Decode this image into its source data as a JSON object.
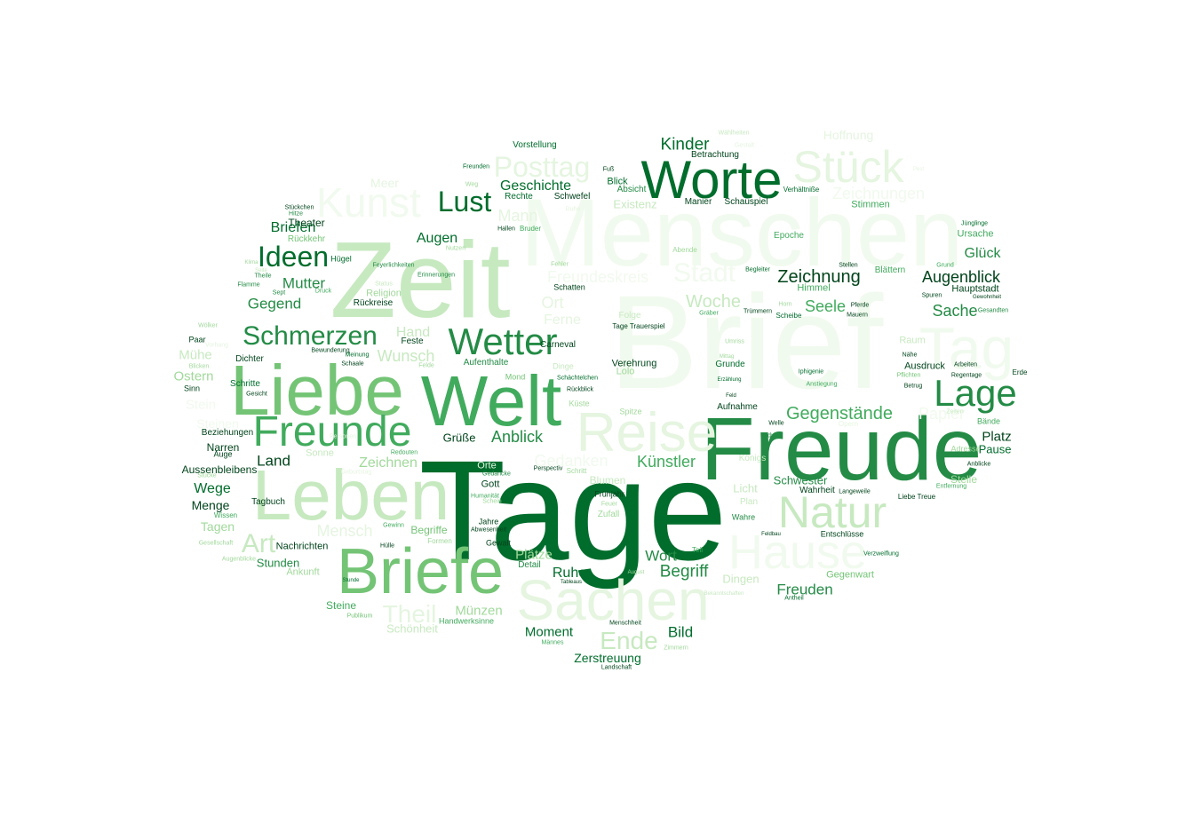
{
  "palette": {
    "g1": "#00441b",
    "g2": "#006d2c",
    "g3": "#238b45",
    "g4": "#41ab5d",
    "g5": "#74c476",
    "g6": "#a1d99b",
    "g7": "#c7e9c0",
    "g8": "#e5f5e0",
    "g9": "#f1faee"
  },
  "words": [
    {
      "t": "Brief",
      "c": "g9"
    },
    {
      "t": "Menschen",
      "c": "g9"
    },
    {
      "t": "Tage",
      "c": "g2"
    },
    {
      "t": "Zeit",
      "c": "g7"
    },
    {
      "t": "Freude",
      "c": "g3"
    },
    {
      "t": "Welt",
      "c": "g4"
    },
    {
      "t": "Liebe",
      "c": "g5"
    },
    {
      "t": "Leben",
      "c": "g7"
    },
    {
      "t": "Briefe",
      "c": "g5"
    },
    {
      "t": "Sachen",
      "c": "g8"
    },
    {
      "t": "Reise",
      "c": "g8"
    },
    {
      "t": "Worte",
      "c": "g2"
    },
    {
      "t": "Stück",
      "c": "g8"
    },
    {
      "t": "Hause",
      "c": "g9"
    },
    {
      "t": "Natur",
      "c": "g7"
    },
    {
      "t": "Tag",
      "c": "g9"
    },
    {
      "t": "Freunde",
      "c": "g4"
    },
    {
      "t": "Lage",
      "c": "g3"
    },
    {
      "t": "Kunst",
      "c": "g9"
    },
    {
      "t": "Wetter",
      "c": "g3"
    },
    {
      "t": "Schmerzen",
      "c": "g3"
    },
    {
      "t": "Ideen",
      "c": "g2"
    },
    {
      "t": "Posttag",
      "c": "g8"
    },
    {
      "t": "Lust",
      "c": "g2"
    },
    {
      "t": "Art",
      "c": "g7"
    },
    {
      "t": "Theil",
      "c": "g8"
    },
    {
      "t": "Ende",
      "c": "g7"
    },
    {
      "t": "Stadt",
      "c": "g9"
    },
    {
      "t": "Zeichnung",
      "c": "g1"
    },
    {
      "t": "Augenblick",
      "c": "g1"
    },
    {
      "t": "Gegenstände",
      "c": "g4"
    },
    {
      "t": "Woche",
      "c": "g7"
    },
    {
      "t": "Kinder",
      "c": "g2"
    },
    {
      "t": "Hoffnung",
      "c": "g8"
    },
    {
      "t": "Zeichnungen",
      "c": "g9"
    },
    {
      "t": "Geschichte",
      "c": "g2"
    },
    {
      "t": "Freundeskreis",
      "c": "g9"
    },
    {
      "t": "Mann",
      "c": "g8"
    },
    {
      "t": "Gedanken",
      "c": "g9"
    },
    {
      "t": "Augen",
      "c": "g2"
    },
    {
      "t": "Mutter",
      "c": "g3"
    },
    {
      "t": "Gegend",
      "c": "g3"
    },
    {
      "t": "Briefen",
      "c": "g2"
    },
    {
      "t": "Meer",
      "c": "g8"
    },
    {
      "t": "Wunsch",
      "c": "g7"
    },
    {
      "t": "Hand",
      "c": "g7"
    },
    {
      "t": "Ort",
      "c": "g8"
    },
    {
      "t": "Ferne",
      "c": "g8"
    },
    {
      "t": "Anblick",
      "c": "g3"
    },
    {
      "t": "Künstler",
      "c": "g4"
    },
    {
      "t": "Zeichnen",
      "c": "g6"
    },
    {
      "t": "Mensch",
      "c": "g8"
    },
    {
      "t": "Münzen",
      "c": "g6"
    },
    {
      "t": "Moment",
      "c": "g2"
    },
    {
      "t": "Bild",
      "c": "g2"
    },
    {
      "t": "Freuden",
      "c": "g3"
    },
    {
      "t": "Wort",
      "c": "g3"
    },
    {
      "t": "Begriff",
      "c": "g3"
    },
    {
      "t": "Ruhe",
      "c": "g2"
    },
    {
      "t": "Plätze",
      "c": "g6"
    },
    {
      "t": "Zerstreuung",
      "c": "g2"
    },
    {
      "t": "Schönheit",
      "c": "g7"
    },
    {
      "t": "Seele",
      "c": "g4"
    },
    {
      "t": "Sache",
      "c": "g3"
    },
    {
      "t": "Glück",
      "c": "g3"
    },
    {
      "t": "Platz",
      "c": "g1"
    },
    {
      "t": "Pause",
      "c": "g2"
    },
    {
      "t": "Papier",
      "c": "g9"
    },
    {
      "t": "Stelle",
      "c": "g6"
    },
    {
      "t": "Schwester",
      "c": "g3"
    },
    {
      "t": "Licht",
      "c": "g7"
    },
    {
      "t": "Dingen",
      "c": "g7"
    },
    {
      "t": "Gegenwart",
      "c": "g5"
    },
    {
      "t": "Existenz",
      "c": "g7"
    },
    {
      "t": "Stimmen",
      "c": "g4"
    },
    {
      "t": "Ursache",
      "c": "g4"
    },
    {
      "t": "Hauptstadt",
      "c": "g1"
    },
    {
      "t": "Raum",
      "c": "g7"
    },
    {
      "t": "Ausdruck",
      "c": "g1"
    },
    {
      "t": "Himmel",
      "c": "g4"
    },
    {
      "t": "Folge",
      "c": "g7"
    },
    {
      "t": "Land",
      "c": "g1"
    },
    {
      "t": "Wege",
      "c": "g2"
    },
    {
      "t": "Menge",
      "c": "g1"
    },
    {
      "t": "Tagen",
      "c": "g6"
    },
    {
      "t": "Stunden",
      "c": "g3"
    },
    {
      "t": "Steine",
      "c": "g4"
    },
    {
      "t": "Ostern",
      "c": "g6"
    },
    {
      "t": "Mühe",
      "c": "g7"
    },
    {
      "t": "Stein",
      "c": "g9"
    },
    {
      "t": "Steinen",
      "c": "g9"
    },
    {
      "t": "Grüße",
      "c": "g1"
    },
    {
      "t": "Sonne",
      "c": "g7"
    },
    {
      "t": "Orte",
      "c": "g8"
    },
    {
      "t": "Gott",
      "c": "g1"
    },
    {
      "t": "Begriffe",
      "c": "g5"
    },
    {
      "t": "Religion",
      "c": "g6"
    },
    {
      "t": "Rückreise",
      "c": "g1"
    },
    {
      "t": "Feste",
      "c": "g1"
    },
    {
      "t": "Aufenthalte",
      "c": "g3"
    },
    {
      "t": "Verehrung",
      "c": "g1"
    },
    {
      "t": "Grunde",
      "c": "g2"
    },
    {
      "t": "Aufnahme",
      "c": "g1"
    },
    {
      "t": "Königs",
      "c": "g7"
    },
    {
      "t": "Plan",
      "c": "g7"
    },
    {
      "t": "Frühjahr",
      "c": "g1"
    },
    {
      "t": "Detail",
      "c": "g3"
    },
    {
      "t": "Gewalt",
      "c": "g1"
    },
    {
      "t": "Jahre",
      "c": "g1"
    },
    {
      "t": "Rechte",
      "c": "g2"
    },
    {
      "t": "Schwefel",
      "c": "g1"
    },
    {
      "t": "Blick",
      "c": "g2"
    },
    {
      "t": "Absicht",
      "c": "g3"
    },
    {
      "t": "Verhältniße",
      "c": "g2"
    },
    {
      "t": "Manier",
      "c": "g1"
    },
    {
      "t": "Schauspiel",
      "c": "g1"
    },
    {
      "t": "Betrachtung",
      "c": "g1"
    },
    {
      "t": "Vorstellung",
      "c": "g2"
    },
    {
      "t": "Epoche",
      "c": "g4"
    },
    {
      "t": "Blättern",
      "c": "g4"
    },
    {
      "t": "Adresse",
      "c": "g6"
    },
    {
      "t": "Erde",
      "c": "g1"
    },
    {
      "t": "Bände",
      "c": "g4"
    },
    {
      "t": "Theater",
      "c": "g1"
    },
    {
      "t": "Rückkehr",
      "c": "g5"
    },
    {
      "t": "Aussenbleibens",
      "c": "g1"
    },
    {
      "t": "Narren",
      "c": "g1"
    },
    {
      "t": "Schritte",
      "c": "g2"
    },
    {
      "t": "Paar",
      "c": "g1"
    },
    {
      "t": "Sinn",
      "c": "g1"
    },
    {
      "t": "Dichter",
      "c": "g1"
    },
    {
      "t": "Nachrichten",
      "c": "g1"
    },
    {
      "t": "Ankunft",
      "c": "g6"
    },
    {
      "t": "Tagbuch",
      "c": "g1"
    },
    {
      "t": "Dinge",
      "c": "g7"
    },
    {
      "t": "Mond",
      "c": "g5"
    },
    {
      "t": "Schatten",
      "c": "g1"
    },
    {
      "t": "Abende",
      "c": "g6"
    },
    {
      "t": "Wahrheit",
      "c": "g1"
    },
    {
      "t": "Teil",
      "c": "g4"
    },
    {
      "t": "Wahre",
      "c": "g3"
    },
    {
      "t": "Opern",
      "c": "g8"
    },
    {
      "t": "Liebe Treue",
      "c": "g1"
    },
    {
      "t": "Tage Trauerspiel",
      "c": "g1"
    },
    {
      "t": "Carneval",
      "c": "g1"
    },
    {
      "t": "Spitze",
      "c": "g6"
    },
    {
      "t": "Pest",
      "c": "g8"
    },
    {
      "t": "Gestalt",
      "c": "g8"
    },
    {
      "t": "Fuß",
      "c": "g1"
    },
    {
      "t": "Hallen",
      "c": "g1"
    },
    {
      "t": "Scheibe",
      "c": "g2"
    },
    {
      "t": "Mauern",
      "c": "g1"
    },
    {
      "t": "Pferde",
      "c": "g1"
    },
    {
      "t": "Stellen",
      "c": "g1"
    },
    {
      "t": "Spuren",
      "c": "g1"
    },
    {
      "t": "Gewohnheit",
      "c": "g1"
    },
    {
      "t": "Gesandten",
      "c": "g3"
    },
    {
      "t": "Jünglinge",
      "c": "g2"
    },
    {
      "t": "Grund",
      "c": "g4"
    },
    {
      "t": "Betrug",
      "c": "g1"
    },
    {
      "t": "Pflichten",
      "c": "g5"
    },
    {
      "t": "Nähe",
      "c": "g1"
    },
    {
      "t": "Arbeiten",
      "c": "g1"
    },
    {
      "t": "Regentage",
      "c": "g1"
    },
    {
      "t": "Anblicke",
      "c": "g1"
    },
    {
      "t": "Entfernung",
      "c": "g4"
    },
    {
      "t": "Langeweile",
      "c": "g1"
    },
    {
      "t": "Umriss",
      "c": "g6"
    },
    {
      "t": "Mittag",
      "c": "g6"
    },
    {
      "t": "Erzählung",
      "c": "g2"
    },
    {
      "t": "Feld",
      "c": "g1"
    },
    {
      "t": "Iphigenie",
      "c": "g2"
    },
    {
      "t": "Anstiegung",
      "c": "g4"
    },
    {
      "t": "Gräber",
      "c": "g4"
    },
    {
      "t": "Horn",
      "c": "g6"
    },
    {
      "t": "Trümmern",
      "c": "g1"
    },
    {
      "t": "Begleiter",
      "c": "g2"
    },
    {
      "t": "Feuer",
      "c": "g6"
    },
    {
      "t": "August",
      "c": "g6"
    },
    {
      "t": "Tableaus",
      "c": "g1"
    },
    {
      "t": "Feldbau",
      "c": "g1"
    },
    {
      "t": "Entschlüsse",
      "c": "g1"
    },
    {
      "t": "Verzweiflung",
      "c": "g2"
    },
    {
      "t": "Bekanntschaften",
      "c": "g7"
    },
    {
      "t": "Antheil",
      "c": "g2"
    },
    {
      "t": "Männes",
      "c": "g4"
    },
    {
      "t": "Zimmern",
      "c": "g6"
    },
    {
      "t": "Menschheit",
      "c": "g1"
    },
    {
      "t": "Landschaft",
      "c": "g1"
    },
    {
      "t": "Handwerksinne",
      "c": "g4"
    },
    {
      "t": "Publikum",
      "c": "g5"
    },
    {
      "t": "Stunde",
      "c": "g2"
    },
    {
      "t": "Personen",
      "c": "g8"
    },
    {
      "t": "Klima",
      "c": "g6"
    },
    {
      "t": "Augenblicke",
      "c": "g6"
    },
    {
      "t": "Gesellschaft",
      "c": "g6"
    },
    {
      "t": "Wissen",
      "c": "g4"
    },
    {
      "t": "Auge",
      "c": "g1"
    },
    {
      "t": "Stücke",
      "c": "g6"
    },
    {
      "t": "Geburtstag",
      "c": "g8"
    },
    {
      "t": "Redouten",
      "c": "g4"
    },
    {
      "t": "Gedancke",
      "c": "g3"
    },
    {
      "t": "Perspectiv",
      "c": "g1"
    },
    {
      "t": "Schritt",
      "c": "g6"
    },
    {
      "t": "Humanität",
      "c": "g4"
    },
    {
      "t": "Schein",
      "c": "g6"
    },
    {
      "t": "Gewinn",
      "c": "g4"
    },
    {
      "t": "Abwesenheit",
      "c": "g1"
    },
    {
      "t": "Hülle",
      "c": "g1"
    },
    {
      "t": "Formen",
      "c": "g6"
    },
    {
      "t": "Wölker",
      "c": "g6"
    },
    {
      "t": "Vorhang",
      "c": "g8"
    },
    {
      "t": "Blicken",
      "c": "g6"
    },
    {
      "t": "Gesicht",
      "c": "g1"
    },
    {
      "t": "Beziehungen",
      "c": "g1"
    },
    {
      "t": "Hügel",
      "c": "g2"
    },
    {
      "t": "Seite",
      "c": "g7"
    },
    {
      "t": "Theile",
      "c": "g3"
    },
    {
      "t": "Flamme",
      "c": "g3"
    },
    {
      "t": "Sept",
      "c": "g3"
    },
    {
      "t": "Druck",
      "c": "g4"
    },
    {
      "t": "Stückchen",
      "c": "g1"
    },
    {
      "t": "Hitze",
      "c": "g3"
    },
    {
      "t": "Freunden",
      "c": "g2"
    },
    {
      "t": "Weg",
      "c": "g6"
    },
    {
      "t": "Ruhe",
      "c": "g8"
    },
    {
      "t": "Nutzen",
      "c": "g6"
    },
    {
      "t": "Fehler",
      "c": "g6"
    },
    {
      "t": "Erinnerungen",
      "c": "g3"
    },
    {
      "t": "Status",
      "c": "g7"
    },
    {
      "t": "Feyerlichkeiten",
      "c": "g3"
    },
    {
      "t": "Bewunderung",
      "c": "g1"
    },
    {
      "t": "Meinung",
      "c": "g2"
    },
    {
      "t": "Schaale",
      "c": "g1"
    },
    {
      "t": "Felde",
      "c": "g6"
    },
    {
      "t": "Rückblick",
      "c": "g1"
    },
    {
      "t": "Schächtelchen",
      "c": "g2"
    },
    {
      "t": "Lolo",
      "c": "g6"
    },
    {
      "t": "Küste",
      "c": "g6"
    },
    {
      "t": "Welle",
      "c": "g1"
    },
    {
      "t": "Bildung",
      "c": "g3"
    },
    {
      "t": "Zeiten",
      "c": "g7"
    },
    {
      "t": "Zufall",
      "c": "g6"
    },
    {
      "t": "Blumen",
      "c": "g7"
    },
    {
      "t": "Bruder",
      "c": "g4"
    },
    {
      "t": "Wählheiten",
      "c": "g7"
    },
    {
      "t": "Herz",
      "c": "g7"
    },
    {
      "t": "Hause",
      "c": "g7"
    },
    {
      "t": "Augen",
      "c": "g8"
    },
    {
      "t": "Haus",
      "c": "g8"
    }
  ]
}
